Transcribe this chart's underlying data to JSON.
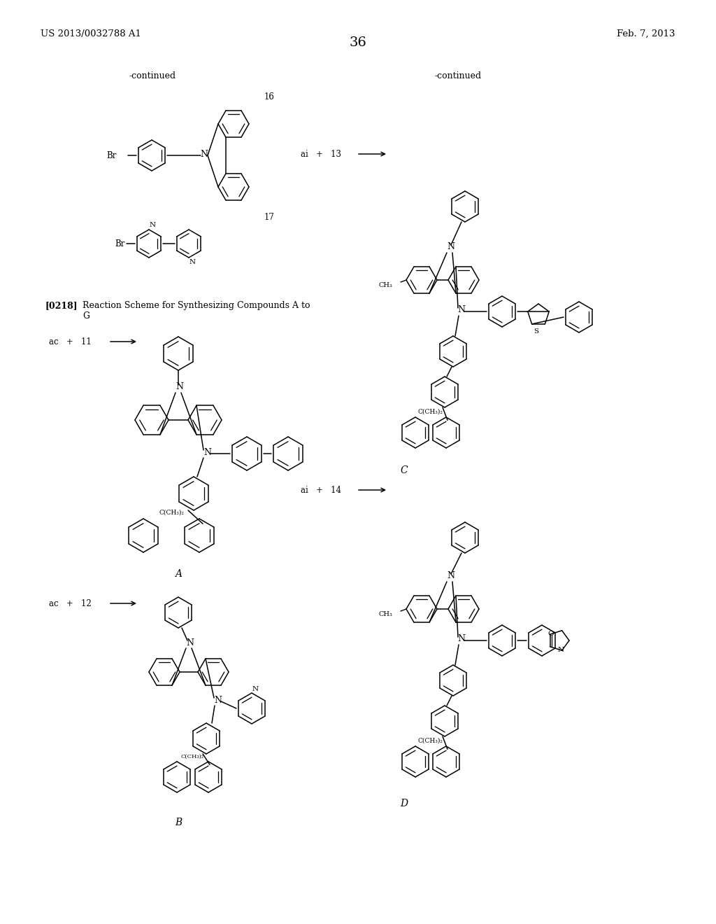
{
  "page_number": "36",
  "patent_number": "US 2013/0032788 A1",
  "patent_date": "Feb. 7, 2013",
  "background_color": "#ffffff",
  "text_color": "#000000",
  "continued_left": "-continued",
  "continued_right": "-continued",
  "label_16": "16",
  "label_17": "17",
  "label_A": "A",
  "label_B": "B",
  "label_C": "C",
  "label_D": "D",
  "ref_0218_bold": "[0218]",
  "ref_0218_text": "Reaction Scheme for Synthesizing Compounds A to\nG",
  "ac11": "ac   +   11",
  "ac12": "ac   +   12",
  "ai13": "ai   +   13",
  "ai14": "ai   +   14"
}
